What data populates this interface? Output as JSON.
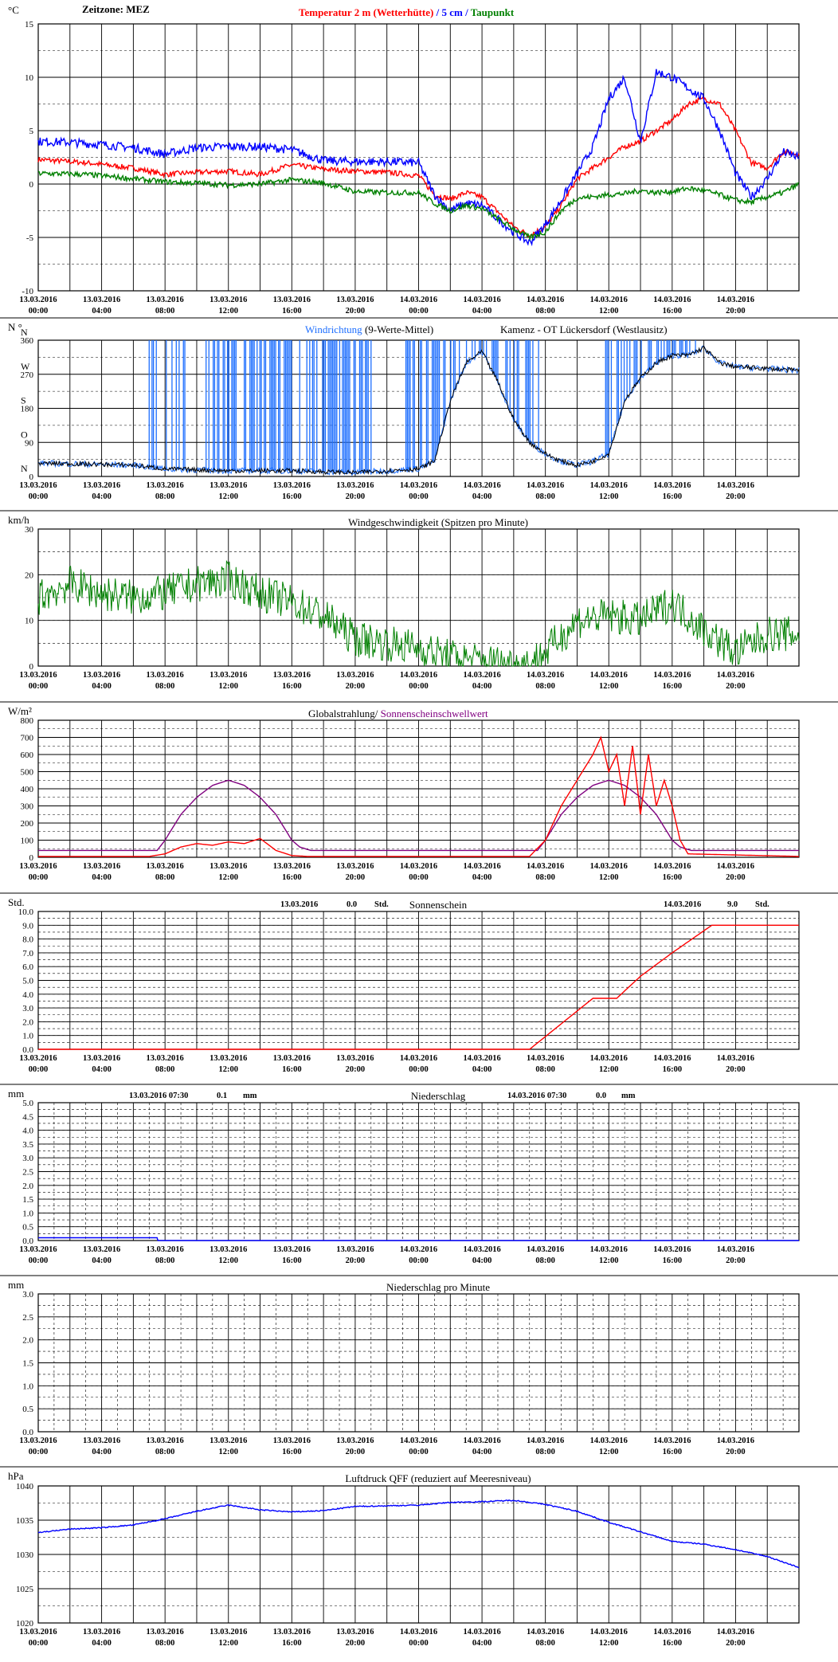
{
  "xticks": [
    {
      "d": "13.03.2016",
      "t": "00:00"
    },
    {
      "d": "13.03.2016",
      "t": "04:00"
    },
    {
      "d": "13.03.2016",
      "t": "08:00"
    },
    {
      "d": "13.03.2016",
      "t": "12:00"
    },
    {
      "d": "13.03.2016",
      "t": "16:00"
    },
    {
      "d": "13.03.2016",
      "t": "20:00"
    },
    {
      "d": "14.03.2016",
      "t": "00:00"
    },
    {
      "d": "14.03.2016",
      "t": "04:00"
    },
    {
      "d": "14.03.2016",
      "t": "08:00"
    },
    {
      "d": "14.03.2016",
      "t": "12:00"
    },
    {
      "d": "14.03.2016",
      "t": "16:00"
    },
    {
      "d": "14.03.2016",
      "t": "20:00"
    }
  ],
  "chart_data": [
    {
      "type": "line",
      "unit": "°C",
      "timezone_label": "Zeitzone: MEZ",
      "title_parts": [
        {
          "text": "Temperatur 2 m (Wetterhütte)",
          "color": "#ff0000"
        },
        {
          "text": "  /  ",
          "color": "#0000ff"
        },
        {
          "text": "5 cm",
          "color": "#0000ff"
        },
        {
          "text": " / ",
          "color": "#0000ff"
        },
        {
          "text": "Taupunkt",
          "color": "#008000"
        }
      ],
      "ylim": [
        -10,
        15
      ],
      "yticks": [
        {
          "v": 15,
          "l": "15"
        },
        {
          "v": 10,
          "l": "10"
        },
        {
          "v": 5,
          "l": "5"
        },
        {
          "v": 0,
          "l": "0"
        },
        {
          "v": -5,
          "l": "-5"
        },
        {
          "v": -10,
          "l": "-10"
        }
      ],
      "x_hours": [
        0,
        24,
        48
      ],
      "series": [
        {
          "name": "Temperatur 2 m (Wetterhütte)",
          "color": "#ff0000",
          "jitter": 0.25,
          "x": [
            0,
            3,
            6,
            8,
            10,
            12,
            14,
            16,
            18,
            20,
            22,
            24,
            25,
            26,
            27,
            28,
            30,
            31,
            32,
            33,
            34,
            35,
            36,
            37,
            38,
            39,
            40,
            41,
            42,
            43,
            44,
            45,
            46,
            47,
            48
          ],
          "y": [
            2.3,
            2.0,
            1.5,
            0.9,
            1.1,
            1.2,
            0.9,
            1.8,
            1.4,
            1.2,
            1.1,
            0.8,
            -1.0,
            -1.4,
            -0.8,
            -1.2,
            -4.0,
            -4.8,
            -4.0,
            -2.0,
            0.5,
            1.5,
            2.5,
            3.5,
            4.0,
            5.0,
            6.0,
            7.5,
            8.0,
            7.5,
            5.0,
            2.0,
            1.5,
            3.0,
            2.8
          ]
        },
        {
          "name": "5 cm",
          "color": "#0000ff",
          "jitter": 0.4,
          "x": [
            0,
            2,
            4,
            6,
            8,
            10,
            12,
            14,
            16,
            18,
            20,
            22,
            24,
            25,
            26,
            27,
            28,
            30,
            31,
            32,
            33,
            34,
            35,
            36,
            37,
            38,
            39,
            40,
            41,
            42,
            43,
            44,
            45,
            46,
            47,
            48
          ],
          "y": [
            4.0,
            3.9,
            3.7,
            3.4,
            2.8,
            3.4,
            3.5,
            3.5,
            3.2,
            2.2,
            2.1,
            2.1,
            2.0,
            -1.0,
            -2.5,
            -1.8,
            -2.0,
            -4.5,
            -5.5,
            -3.8,
            -1.5,
            1.0,
            3.5,
            8.0,
            10.0,
            4.0,
            10.5,
            10.0,
            9.0,
            8.0,
            5.0,
            1.0,
            -1.2,
            0.5,
            3.0,
            2.5
          ]
        },
        {
          "name": "Taupunkt",
          "color": "#008000",
          "jitter": 0.25,
          "x": [
            0,
            3,
            6,
            8,
            10,
            12,
            14,
            16,
            18,
            20,
            22,
            24,
            25,
            26,
            27,
            28,
            30,
            31,
            32,
            33,
            34,
            35,
            36,
            37,
            38,
            39,
            40,
            41,
            42,
            43,
            44,
            45,
            46,
            47,
            48
          ],
          "y": [
            1.0,
            0.9,
            0.5,
            0.2,
            0.1,
            -0.1,
            0.0,
            0.4,
            0.1,
            -0.7,
            -0.8,
            -0.8,
            -1.8,
            -2.5,
            -2.0,
            -2.3,
            -4.2,
            -5.0,
            -4.5,
            -2.5,
            -1.3,
            -1.2,
            -1.0,
            -0.9,
            -0.6,
            -0.8,
            -0.7,
            -0.4,
            -0.6,
            -1.0,
            -1.5,
            -1.7,
            -1.2,
            -0.8,
            0.0
          ]
        }
      ]
    },
    {
      "type": "line",
      "unit": "N °",
      "title_parts": [
        {
          "text": "Windrichtung",
          "color": "#1e6fff"
        },
        {
          "text": " (9-Werte-Mittel)",
          "color": "#000000"
        }
      ],
      "location": "Kamenz - OT Lückersdorf (Westlausitz)",
      "ylim": [
        0,
        360
      ],
      "yticks": [
        {
          "v": 360,
          "l": "360"
        },
        {
          "v": 270,
          "l": "270"
        },
        {
          "v": 180,
          "l": "180"
        },
        {
          "v": 90,
          "l": "90"
        },
        {
          "v": 0,
          "l": "0"
        }
      ],
      "compass": [
        {
          "v": 360,
          "l": "N"
        },
        {
          "v": 270,
          "l": "W"
        },
        {
          "v": 180,
          "l": "S"
        },
        {
          "v": 90,
          "l": "O"
        },
        {
          "v": 0,
          "l": "N"
        }
      ],
      "series": [
        {
          "name": "Windrichtung",
          "color": "#1e6fff",
          "jitter": 8,
          "x": [
            0,
            6,
            8,
            12,
            16,
            20,
            22,
            24,
            25,
            26,
            27,
            28,
            29,
            30,
            31,
            32,
            33,
            34,
            35,
            36,
            37,
            38,
            39,
            40,
            41,
            42,
            43,
            44,
            46,
            48
          ],
          "y": [
            35,
            30,
            20,
            15,
            15,
            10,
            15,
            20,
            40,
            200,
            300,
            330,
            250,
            150,
            90,
            60,
            40,
            30,
            40,
            60,
            200,
            260,
            300,
            320,
            320,
            340,
            300,
            290,
            285,
            280
          ],
          "spikes": [
            [
              7.0,
              9.5
            ],
            [
              10.5,
              12.5
            ],
            [
              13,
              16
            ],
            [
              16.5,
              21
            ],
            [
              23.2,
              24.2
            ],
            [
              24.5,
              29
            ],
            [
              29.5,
              31.6
            ],
            [
              35.8,
              41.6
            ]
          ]
        },
        {
          "name": "9-Werte-Mittel",
          "color": "#000000",
          "jitter": 6,
          "x": [
            0,
            6,
            8,
            12,
            16,
            20,
            22,
            24,
            25,
            26,
            27,
            28,
            29,
            30,
            31,
            32,
            33,
            34,
            35,
            36,
            37,
            38,
            39,
            40,
            41,
            42,
            43,
            44,
            46,
            48
          ],
          "y": [
            35,
            30,
            20,
            15,
            15,
            10,
            15,
            20,
            40,
            200,
            300,
            330,
            250,
            150,
            90,
            60,
            40,
            30,
            40,
            60,
            200,
            260,
            300,
            320,
            320,
            340,
            300,
            290,
            285,
            280
          ]
        }
      ]
    },
    {
      "type": "line",
      "unit": "km/h",
      "title": "Windgeschwindigkeit (Spitzen pro Minute)",
      "ylim": [
        0,
        30
      ],
      "yticks": [
        {
          "v": 30,
          "l": "30"
        },
        {
          "v": 20,
          "l": "20"
        },
        {
          "v": 10,
          "l": "10"
        },
        {
          "v": 0,
          "l": "0"
        }
      ],
      "series": [
        {
          "name": "Windgeschwindigkeit",
          "color": "#008000",
          "jitter": 4,
          "x": [
            0,
            2,
            4,
            6,
            8,
            10,
            12,
            14,
            16,
            18,
            20,
            22,
            24,
            26,
            28,
            30,
            31,
            32,
            34,
            36,
            38,
            40,
            42,
            44,
            46,
            48
          ],
          "y": [
            15,
            18,
            16,
            15,
            16,
            18,
            19,
            16,
            14,
            11,
            6,
            5,
            4,
            2,
            1,
            0.5,
            0.5,
            3,
            10,
            11,
            10,
            14,
            8,
            3,
            7,
            7
          ]
        }
      ]
    },
    {
      "type": "line",
      "unit": "W/m²",
      "title_parts": [
        {
          "text": "Globalstrahlung/ ",
          "color": "#000000"
        },
        {
          "text": "Sonnenscheinschwellwert",
          "color": "#800080"
        }
      ],
      "ylim": [
        0,
        800
      ],
      "yticks": [
        {
          "v": 800,
          "l": "800"
        },
        {
          "v": 700,
          "l": "700"
        },
        {
          "v": 600,
          "l": "600"
        },
        {
          "v": 500,
          "l": "500"
        },
        {
          "v": 400,
          "l": "400"
        },
        {
          "v": 300,
          "l": "300"
        },
        {
          "v": 200,
          "l": "200"
        },
        {
          "v": 100,
          "l": "100"
        },
        {
          "v": 0,
          "l": "0"
        }
      ],
      "series": [
        {
          "name": "Sonnenscheinschwellwert",
          "color": "#800080",
          "jitter": 0,
          "x": [
            0,
            6.8,
            7.5,
            8,
            9,
            10,
            11,
            12,
            13,
            14,
            15,
            16,
            16.5,
            17.2,
            24,
            30.8,
            31.5,
            32,
            33,
            34,
            35,
            36,
            37,
            38,
            39,
            40,
            40.5,
            41.2,
            48
          ],
          "y": [
            40,
            40,
            40,
            100,
            250,
            350,
            420,
            450,
            420,
            350,
            250,
            100,
            60,
            40,
            40,
            40,
            40,
            100,
            250,
            350,
            420,
            450,
            420,
            350,
            250,
            100,
            60,
            40,
            40
          ]
        },
        {
          "name": "Globalstrahlung",
          "color": "#ff0000",
          "jitter": 0,
          "x": [
            0,
            7,
            8,
            9,
            10,
            11,
            12,
            13,
            14,
            15,
            16,
            17,
            24,
            31,
            32,
            33,
            34,
            35,
            35.5,
            36,
            36.5,
            37,
            37.5,
            38,
            38.5,
            39,
            39.5,
            40,
            40.5,
            41,
            48
          ],
          "y": [
            5,
            5,
            20,
            60,
            80,
            70,
            90,
            80,
            110,
            40,
            10,
            5,
            5,
            5,
            100,
            300,
            450,
            600,
            700,
            500,
            600,
            300,
            650,
            250,
            600,
            300,
            450,
            300,
            100,
            20,
            5
          ]
        }
      ]
    },
    {
      "type": "line",
      "unit": "Std.",
      "title": "Sonnenschein",
      "daily": [
        {
          "date": "13.03.2016",
          "value": "0.0",
          "unit": "Std."
        },
        {
          "date": "14.03.2016",
          "value": "9.0",
          "unit": "Std."
        }
      ],
      "ylim": [
        0,
        10
      ],
      "yticks": [
        {
          "v": 10,
          "l": "10.0"
        },
        {
          "v": 9,
          "l": "9.0"
        },
        {
          "v": 8,
          "l": "8.0"
        },
        {
          "v": 7,
          "l": "7.0"
        },
        {
          "v": 6,
          "l": "6.0"
        },
        {
          "v": 5,
          "l": "5.0"
        },
        {
          "v": 4,
          "l": "4.0"
        },
        {
          "v": 3,
          "l": "3.0"
        },
        {
          "v": 2,
          "l": "2.0"
        },
        {
          "v": 1,
          "l": "1.0"
        },
        {
          "v": 0,
          "l": "0.0"
        }
      ],
      "series": [
        {
          "name": "Sonnenschein",
          "color": "#ff0000",
          "jitter": 0,
          "x": [
            0,
            31,
            35,
            36.5,
            38,
            40,
            42.5,
            48
          ],
          "y": [
            0,
            0,
            3.7,
            3.7,
            5.3,
            7.0,
            9.0,
            9.0
          ]
        }
      ]
    },
    {
      "type": "line",
      "unit": "mm",
      "title": "Niederschlag",
      "daily": [
        {
          "date": "13.03.2016 07:30",
          "value": "0.1",
          "unit": "mm"
        },
        {
          "date": "14.03.2016 07:30",
          "value": "0.0",
          "unit": "mm"
        }
      ],
      "ylim": [
        0,
        5
      ],
      "yticks": [
        {
          "v": 5,
          "l": "5.0"
        },
        {
          "v": 4.5,
          "l": "4.5"
        },
        {
          "v": 4,
          "l": "4.0"
        },
        {
          "v": 3.5,
          "l": "3.5"
        },
        {
          "v": 3,
          "l": "3.0"
        },
        {
          "v": 2.5,
          "l": "2.5"
        },
        {
          "v": 2,
          "l": "2.0"
        },
        {
          "v": 1.5,
          "l": "1.5"
        },
        {
          "v": 1,
          "l": "1.0"
        },
        {
          "v": 0.5,
          "l": "0.5"
        },
        {
          "v": 0,
          "l": "0.0"
        }
      ],
      "series": [
        {
          "name": "Niederschlag",
          "color": "#0000ff",
          "jitter": 0,
          "x": [
            0,
            7.5,
            7.5,
            48
          ],
          "y": [
            0.1,
            0.1,
            0,
            0
          ]
        }
      ]
    },
    {
      "type": "line",
      "unit": "mm",
      "title": "Niederschlag pro Minute",
      "ylim": [
        0,
        3
      ],
      "yticks": [
        {
          "v": 3,
          "l": "3.0"
        },
        {
          "v": 2.5,
          "l": "2.5"
        },
        {
          "v": 2,
          "l": "2.0"
        },
        {
          "v": 1.5,
          "l": "1.5"
        },
        {
          "v": 1,
          "l": "1.0"
        },
        {
          "v": 0.5,
          "l": "0.5"
        },
        {
          "v": 0,
          "l": "0.0"
        }
      ],
      "series": []
    },
    {
      "type": "line",
      "unit": "hPa",
      "title": "Luftdruck QFF (reduziert auf Meeresniveau)",
      "ylim": [
        1020,
        1040
      ],
      "yticks": [
        {
          "v": 1040,
          "l": "1040"
        },
        {
          "v": 1035,
          "l": "1035"
        },
        {
          "v": 1030,
          "l": "1030"
        },
        {
          "v": 1025,
          "l": "1025"
        },
        {
          "v": 1020,
          "l": "1020"
        }
      ],
      "series": [
        {
          "name": "Luftdruck QFF",
          "color": "#0000ff",
          "jitter": 0.08,
          "x": [
            0,
            2,
            4,
            6,
            8,
            10,
            12,
            14,
            16,
            18,
            20,
            22,
            24,
            26,
            28,
            30,
            32,
            34,
            36,
            38,
            40,
            42,
            44,
            46,
            48
          ],
          "y": [
            1033.2,
            1033.7,
            1033.9,
            1034.3,
            1035.2,
            1036.3,
            1037.2,
            1036.5,
            1036.2,
            1036.4,
            1037.0,
            1037.1,
            1037.2,
            1037.6,
            1037.7,
            1037.9,
            1037.3,
            1036.3,
            1034.7,
            1033.3,
            1031.9,
            1031.5,
            1030.7,
            1029.7,
            1028.1
          ]
        }
      ]
    }
  ]
}
